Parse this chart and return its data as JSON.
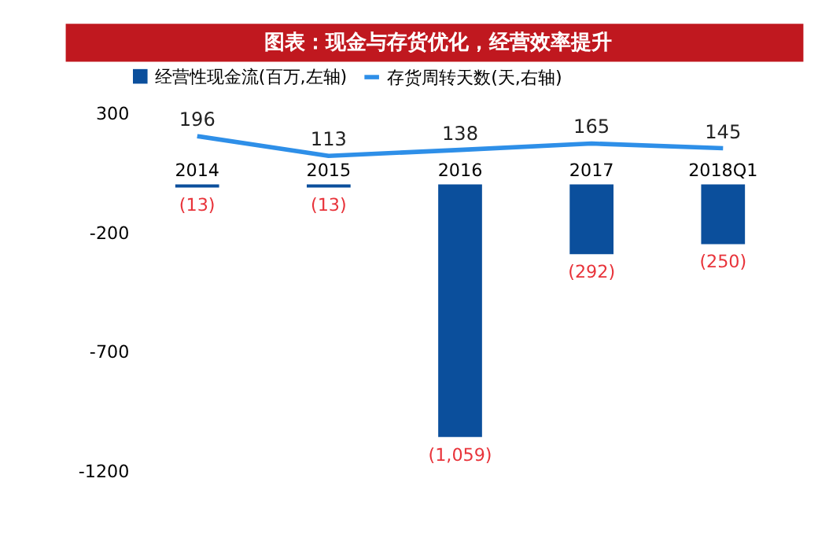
{
  "chart_data": {
    "type": "bar",
    "title": "图表：现金与存货优化，经营效率提升",
    "categories": [
      "2014",
      "2015",
      "2016",
      "2017",
      "2018Q1"
    ],
    "series": [
      {
        "name": "经营性现金流(百万,左轴)",
        "color": "#0b4f9c",
        "values": [
          -13,
          -13,
          -1059,
          -292,
          -250
        ],
        "value_labels": [
          "(13)",
          "(13)",
          "(1,059)",
          "(292)",
          "(250)"
        ]
      },
      {
        "name": "存货周转天数(天,右轴)",
        "type": "line",
        "axis": "y2",
        "color": "#2e8fe8",
        "values": [
          196,
          113,
          138,
          165,
          145
        ],
        "value_labels": [
          "196",
          "113",
          "138",
          "165",
          "145"
        ]
      }
    ],
    "ylim": [
      -1200,
      300
    ],
    "yticks": [
      300,
      -200,
      -700,
      -1200
    ],
    "grid": false,
    "legend": "top",
    "marker": "none",
    "line_style": "solid"
  }
}
